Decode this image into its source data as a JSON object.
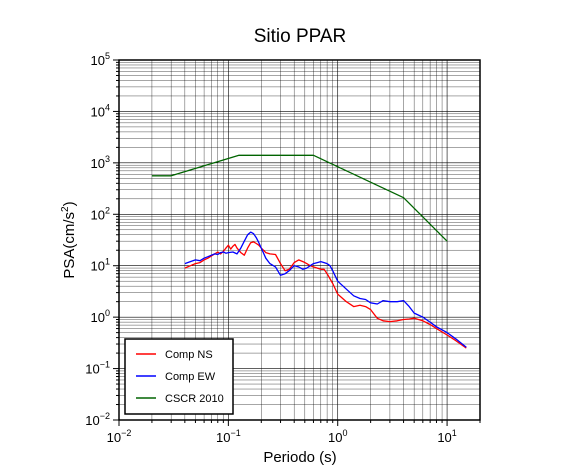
{
  "chart_data": {
    "type": "line",
    "title": "Sitio PPAR",
    "xlabel": "Periodo (s)",
    "ylabel_base": "PSA(cm/s",
    "ylabel_sup": "2",
    "ylabel_end": ")",
    "xscale": "log",
    "yscale": "log",
    "xlim": [
      0.01,
      20
    ],
    "ylim": [
      0.01,
      100000
    ],
    "x_ticks": [
      {
        "value": 0.01,
        "base": "10",
        "exp": "−2"
      },
      {
        "value": 0.1,
        "base": "10",
        "exp": "−1"
      },
      {
        "value": 1,
        "base": "10",
        "exp": "0"
      },
      {
        "value": 10,
        "base": "10",
        "exp": "1"
      }
    ],
    "y_ticks": [
      {
        "value": 0.01,
        "base": "10",
        "exp": "−2"
      },
      {
        "value": 0.1,
        "base": "10",
        "exp": "−1"
      },
      {
        "value": 1,
        "base": "10",
        "exp": "0"
      },
      {
        "value": 10,
        "base": "10",
        "exp": "1"
      },
      {
        "value": 100,
        "base": "10",
        "exp": "2"
      },
      {
        "value": 1000,
        "base": "10",
        "exp": "3"
      },
      {
        "value": 10000,
        "base": "10",
        "exp": "4"
      },
      {
        "value": 100000,
        "base": "10",
        "exp": "5"
      }
    ],
    "grid": true,
    "legend_position": "bottom-left",
    "series": [
      {
        "name": "Comp NS",
        "color": "#ff0000",
        "x": [
          0.04,
          0.045,
          0.05,
          0.055,
          0.06,
          0.065,
          0.07,
          0.075,
          0.08,
          0.085,
          0.09,
          0.095,
          0.1,
          0.105,
          0.11,
          0.115,
          0.12,
          0.13,
          0.14,
          0.15,
          0.16,
          0.17,
          0.18,
          0.19,
          0.2,
          0.22,
          0.24,
          0.27,
          0.3,
          0.33,
          0.36,
          0.4,
          0.44,
          0.48,
          0.52,
          0.56,
          0.6,
          0.65,
          0.7,
          0.75,
          0.8,
          0.9,
          1.0,
          1.2,
          1.4,
          1.6,
          1.8,
          2.0,
          2.3,
          2.6,
          3.0,
          3.5,
          4.0,
          4.5,
          5.0,
          6.0,
          7.0,
          8.0,
          10.0,
          12.0,
          15.0
        ],
        "y": [
          9.0,
          10.0,
          11.0,
          11.5,
          13.0,
          14.0,
          15.5,
          17.0,
          18.5,
          17.0,
          19.0,
          22.0,
          25.0,
          21.0,
          24.0,
          26.0,
          22.0,
          18.0,
          16.0,
          22.0,
          28.0,
          29.0,
          27.0,
          25.0,
          22.0,
          18.0,
          17.0,
          16.5,
          11.0,
          8.0,
          8.5,
          11.5,
          13.0,
          12.0,
          11.0,
          10.0,
          9.5,
          9.0,
          8.5,
          8.5,
          7.0,
          4.5,
          2.8,
          2.0,
          1.6,
          1.7,
          1.6,
          1.4,
          0.95,
          0.85,
          0.82,
          0.85,
          0.9,
          0.92,
          0.95,
          0.85,
          0.72,
          0.6,
          0.45,
          0.35,
          0.25
        ]
      },
      {
        "name": "Comp EW",
        "color": "#0000ff",
        "x": [
          0.04,
          0.045,
          0.05,
          0.055,
          0.06,
          0.065,
          0.07,
          0.075,
          0.08,
          0.085,
          0.09,
          0.095,
          0.1,
          0.11,
          0.12,
          0.13,
          0.14,
          0.15,
          0.16,
          0.17,
          0.18,
          0.19,
          0.2,
          0.22,
          0.24,
          0.27,
          0.3,
          0.33,
          0.36,
          0.4,
          0.44,
          0.48,
          0.52,
          0.56,
          0.6,
          0.65,
          0.7,
          0.75,
          0.8,
          0.85,
          0.9,
          1.0,
          1.2,
          1.4,
          1.6,
          1.8,
          2.0,
          2.3,
          2.6,
          3.0,
          3.5,
          4.0,
          4.5,
          5.0,
          6.0,
          7.0,
          8.0,
          10.0,
          12.0,
          15.0
        ],
        "y": [
          11.0,
          12.0,
          13.0,
          12.5,
          14.0,
          15.0,
          16.0,
          17.0,
          16.5,
          18.0,
          18.5,
          17.5,
          18.0,
          18.5,
          17.0,
          22.0,
          30.0,
          40.0,
          45.0,
          42.0,
          35.0,
          28.0,
          22.0,
          14.0,
          11.0,
          9.5,
          6.5,
          7.0,
          8.0,
          10.0,
          9.5,
          8.5,
          9.0,
          10.0,
          11.0,
          11.5,
          12.0,
          11.5,
          11.0,
          10.0,
          8.0,
          5.0,
          3.5,
          2.6,
          2.3,
          2.2,
          1.9,
          1.8,
          2.1,
          2.0,
          2.0,
          2.1,
          1.6,
          1.2,
          1.0,
          0.8,
          0.65,
          0.5,
          0.38,
          0.26
        ]
      },
      {
        "name": "CSCR 2010",
        "color": "#006400",
        "x": [
          0.02,
          0.03,
          0.125,
          0.6,
          4.0,
          10.0
        ],
        "y": [
          560,
          560,
          1400,
          1400,
          210,
          30
        ]
      }
    ]
  }
}
